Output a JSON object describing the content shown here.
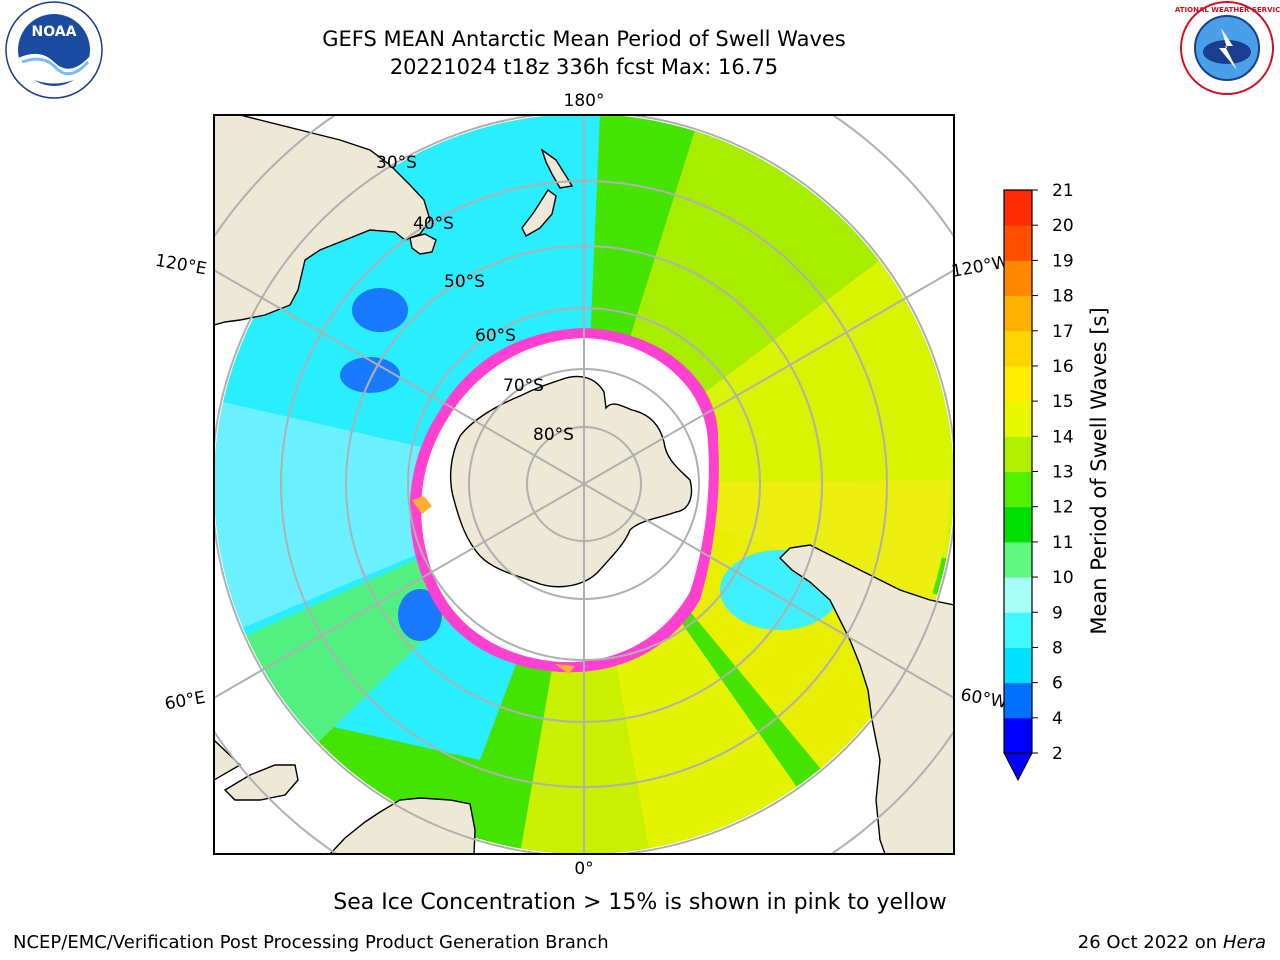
{
  "title": {
    "line1": "GEFS MEAN Antarctic Mean Period of Swell Waves",
    "line2": "20221024 t18z 336h fcst   Max: 16.75"
  },
  "map": {
    "projection": "south-polar-stereographic",
    "meridian_labels": {
      "top": "180°",
      "bottom": "0°",
      "left_upper": "120°E",
      "left_lower": "60°E",
      "right_upper": "120°W",
      "right_lower": "60°W"
    },
    "parallel_labels": [
      "30°S",
      "40°S",
      "50°S",
      "60°S",
      "70°S",
      "80°S"
    ],
    "caption": "Sea Ice Concentration > 15% is shown in pink to yellow"
  },
  "colorbar": {
    "label": "Mean Period of Swell Waves [s]",
    "ticks": [
      "2",
      "4",
      "6",
      "8",
      "9",
      "10",
      "11",
      "12",
      "13",
      "14",
      "15",
      "16",
      "17",
      "18",
      "19",
      "20",
      "21"
    ],
    "colors": [
      "#0000ff",
      "#0070ff",
      "#00e0ff",
      "#40f8ff",
      "#a8fff8",
      "#60f880",
      "#00e000",
      "#50f000",
      "#b0f000",
      "#e8f800",
      "#ffee00",
      "#ffd400",
      "#ffb000",
      "#ff8800",
      "#ff5000",
      "#ff2a00"
    ],
    "extend_color": "#0000ff"
  },
  "logos": {
    "noaa": "NOAA",
    "nws": "NATIONAL WEATHER SERVICE"
  },
  "footer": {
    "left": "NCEP/EMC/Verification Post Processing Product Generation Branch",
    "right_prefix": "26 Oct 2022 on ",
    "right_host": "Hera"
  }
}
